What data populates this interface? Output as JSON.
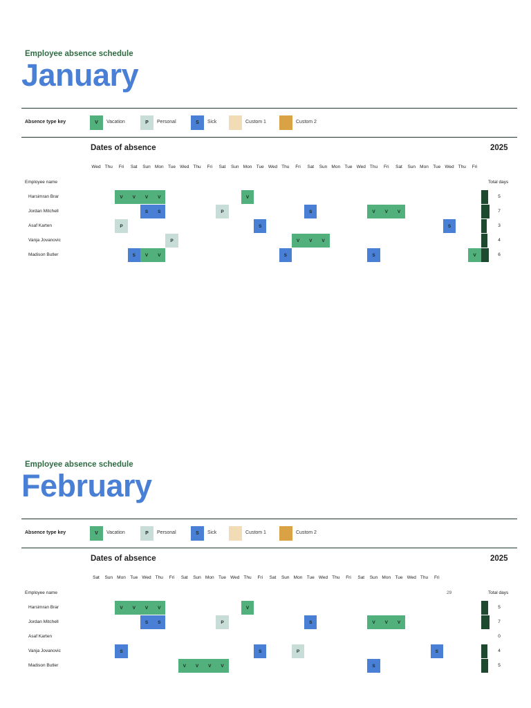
{
  "colors": {
    "vacation": "#52b07c",
    "personal": "#c8dcd8",
    "sick": "#4a7fd6",
    "custom1": "#f2dcb6",
    "custom2": "#d9a244",
    "bar": "#1d4a2e"
  },
  "key": {
    "label": "Absence type key",
    "items": [
      {
        "code": "V",
        "label": "Vacation",
        "type": "vacation"
      },
      {
        "code": "P",
        "label": "Personal",
        "type": "personal"
      },
      {
        "code": "S",
        "label": "Sick",
        "type": "sick"
      },
      {
        "code": "",
        "label": "Custom 1",
        "type": "custom1"
      },
      {
        "code": "",
        "label": "Custom 2",
        "type": "custom2"
      }
    ]
  },
  "sections": [
    {
      "subtitle": "Employee absence schedule",
      "month": "January",
      "dates_title": "Dates of absence",
      "year": "2025",
      "employee_header": "Employee name",
      "total_header": "Total days",
      "marker": "",
      "days": [
        "Wed",
        "Thu",
        "Fri",
        "Sat",
        "Sun",
        "Mon",
        "Tue",
        "Wed",
        "Thu",
        "Fri",
        "Sat",
        "Sun",
        "Mon",
        "Tue",
        "Wed",
        "Thu",
        "Fri",
        "Sat",
        "Sun",
        "Mon",
        "Tue",
        "Wed",
        "Thu",
        "Fri",
        "Sat",
        "Sun",
        "Mon",
        "Tue",
        "Wed",
        "Thu",
        "Fri"
      ],
      "employees": [
        {
          "name": "Harsimran Brar",
          "total": "5",
          "cells": [
            {
              "d": 3,
              "c": "V"
            },
            {
              "d": 4,
              "c": "V"
            },
            {
              "d": 5,
              "c": "V"
            },
            {
              "d": 6,
              "c": "V"
            },
            {
              "d": 13,
              "c": "V"
            }
          ]
        },
        {
          "name": "Jordan Mitchell",
          "total": "7",
          "cells": [
            {
              "d": 5,
              "c": "S"
            },
            {
              "d": 6,
              "c": "S"
            },
            {
              "d": 11,
              "c": "P"
            },
            {
              "d": 18,
              "c": "S"
            },
            {
              "d": 23,
              "c": "V"
            },
            {
              "d": 24,
              "c": "V"
            },
            {
              "d": 25,
              "c": "V"
            }
          ]
        },
        {
          "name": "Asaf Karten",
          "total": "3",
          "cells": [
            {
              "d": 3,
              "c": "P"
            },
            {
              "d": 14,
              "c": "S"
            },
            {
              "d": 29,
              "c": "S"
            }
          ]
        },
        {
          "name": "Vanja Jovanovic",
          "total": "4",
          "cells": [
            {
              "d": 7,
              "c": "P"
            },
            {
              "d": 17,
              "c": "V"
            },
            {
              "d": 18,
              "c": "V"
            },
            {
              "d": 19,
              "c": "V"
            }
          ]
        },
        {
          "name": "Madison Butler",
          "total": "6",
          "cells": [
            {
              "d": 4,
              "c": "S"
            },
            {
              "d": 5,
              "c": "V"
            },
            {
              "d": 6,
              "c": "V"
            },
            {
              "d": 16,
              "c": "S"
            },
            {
              "d": 23,
              "c": "S"
            },
            {
              "d": 31,
              "c": "V"
            }
          ]
        }
      ]
    },
    {
      "subtitle": "Employee absence schedule",
      "month": "February",
      "dates_title": "Dates of absence",
      "year": "2025",
      "employee_header": "Employee name",
      "total_header": "Total days",
      "marker": "29",
      "days": [
        "Sat",
        "Sun",
        "Mon",
        "Tue",
        "Wed",
        "Thu",
        "Fri",
        "Sat",
        "Sun",
        "Mon",
        "Tue",
        "Wed",
        "Thu",
        "Fri",
        "Sat",
        "Sun",
        "Mon",
        "Tue",
        "Wed",
        "Thu",
        "Fri",
        "Sat",
        "Sun",
        "Mon",
        "Tue",
        "Wed",
        "Thu",
        "Fri"
      ],
      "employees": [
        {
          "name": "Harsimran Brar",
          "total": "5",
          "cells": [
            {
              "d": 3,
              "c": "V"
            },
            {
              "d": 4,
              "c": "V"
            },
            {
              "d": 5,
              "c": "V"
            },
            {
              "d": 6,
              "c": "V"
            },
            {
              "d": 13,
              "c": "V"
            }
          ]
        },
        {
          "name": "Jordan Mitchell",
          "total": "7",
          "cells": [
            {
              "d": 5,
              "c": "S"
            },
            {
              "d": 6,
              "c": "S"
            },
            {
              "d": 11,
              "c": "P"
            },
            {
              "d": 18,
              "c": "S"
            },
            {
              "d": 23,
              "c": "V"
            },
            {
              "d": 24,
              "c": "V"
            },
            {
              "d": 25,
              "c": "V"
            }
          ]
        },
        {
          "name": "Asaf Karten",
          "total": "0",
          "cells": []
        },
        {
          "name": "Vanja Jovanovic",
          "total": "4",
          "cells": [
            {
              "d": 3,
              "c": "S"
            },
            {
              "d": 14,
              "c": "S"
            },
            {
              "d": 17,
              "c": "P"
            },
            {
              "d": 28,
              "c": "S"
            }
          ]
        },
        {
          "name": "Madison Butler",
          "total": "5",
          "cells": [
            {
              "d": 8,
              "c": "V"
            },
            {
              "d": 9,
              "c": "V"
            },
            {
              "d": 10,
              "c": "V"
            },
            {
              "d": 11,
              "c": "V"
            },
            {
              "d": 23,
              "c": "S"
            }
          ]
        }
      ]
    }
  ]
}
